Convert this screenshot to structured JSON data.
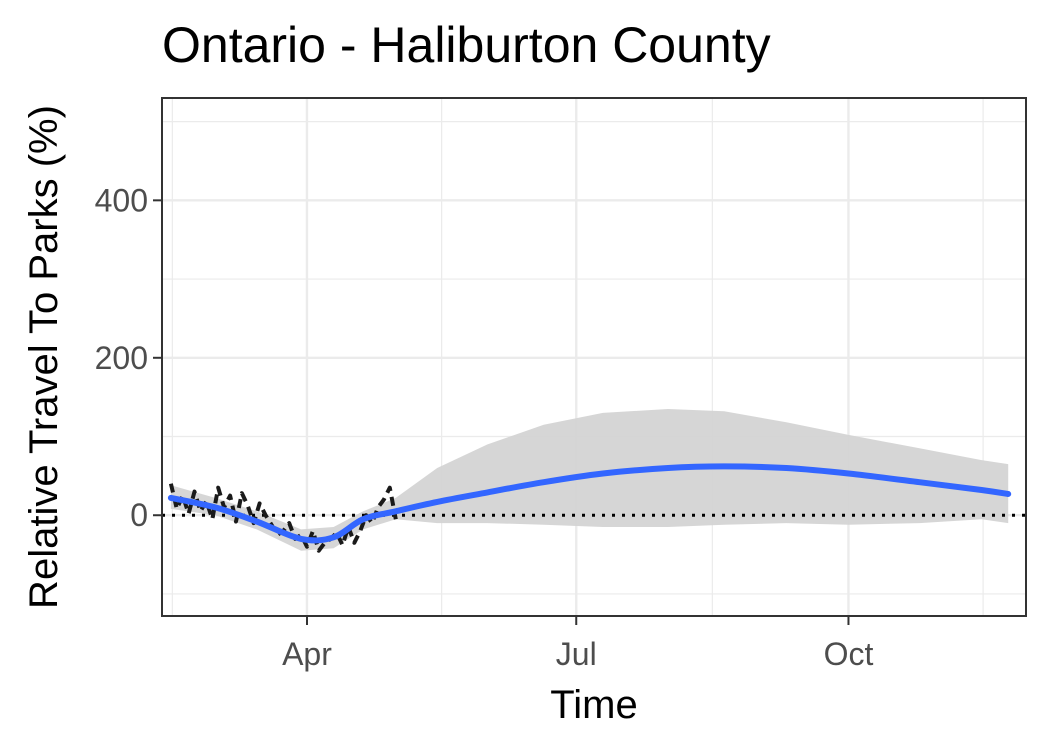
{
  "chart_data": {
    "type": "line",
    "title": "Ontario - Haliburton County",
    "xlabel": "Time",
    "ylabel": "Relative Travel To Parks (%)",
    "x_ticks": [
      "Apr",
      "Jul",
      "Oct"
    ],
    "x_tick_dates": [
      "2020-04-01",
      "2020-07-01",
      "2020-10-01"
    ],
    "y_ticks": [
      0,
      200,
      400
    ],
    "xlim": [
      "2020-02-12",
      "2020-11-30"
    ],
    "ylim": [
      -128,
      530
    ],
    "grid": true,
    "reference_line": {
      "y": 0,
      "style": "dotted"
    },
    "series": [
      {
        "kind": "observed",
        "x": [
          "2020-02-15",
          "2020-02-17",
          "2020-02-19",
          "2020-02-21",
          "2020-02-23",
          "2020-02-25",
          "2020-02-27",
          "2020-02-29",
          "2020-03-02",
          "2020-03-04",
          "2020-03-06",
          "2020-03-08",
          "2020-03-10",
          "2020-03-12",
          "2020-03-14",
          "2020-03-16",
          "2020-03-18",
          "2020-03-20",
          "2020-03-22",
          "2020-03-24",
          "2020-03-26",
          "2020-03-28",
          "2020-03-30",
          "2020-04-01",
          "2020-04-03",
          "2020-04-05",
          "2020-04-07",
          "2020-04-09",
          "2020-04-11",
          "2020-04-13",
          "2020-04-15",
          "2020-04-17",
          "2020-04-19",
          "2020-04-21",
          "2020-04-23",
          "2020-04-25",
          "2020-04-27",
          "2020-04-29",
          "2020-05-01"
        ],
        "values": [
          40,
          8,
          25,
          2,
          30,
          5,
          18,
          -5,
          35,
          10,
          25,
          -8,
          28,
          12,
          -10,
          15,
          0,
          -12,
          -25,
          -20,
          -10,
          -30,
          -25,
          -40,
          -20,
          -45,
          -35,
          -30,
          -22,
          -38,
          -15,
          -35,
          -20,
          0,
          -10,
          10,
          20,
          35,
          -5
        ]
      },
      {
        "kind": "smooth",
        "x": [
          "2020-02-15",
          "2020-03-01",
          "2020-03-15",
          "2020-03-30",
          "2020-04-10",
          "2020-04-20",
          "2020-05-01",
          "2020-05-15",
          "2020-06-01",
          "2020-06-20",
          "2020-07-10",
          "2020-08-01",
          "2020-08-20",
          "2020-09-10",
          "2020-10-01",
          "2020-10-25",
          "2020-11-15",
          "2020-11-24"
        ],
        "values": [
          22,
          10,
          -8,
          -30,
          -28,
          -5,
          5,
          17,
          29,
          42,
          53,
          60,
          62,
          60,
          53,
          42,
          32,
          27
        ]
      }
    ],
    "confidence_band": {
      "x": [
        "2020-02-15",
        "2020-03-01",
        "2020-03-15",
        "2020-03-30",
        "2020-04-10",
        "2020-04-20",
        "2020-05-01",
        "2020-05-15",
        "2020-06-01",
        "2020-06-20",
        "2020-07-10",
        "2020-08-01",
        "2020-08-20",
        "2020-09-10",
        "2020-10-01",
        "2020-10-25",
        "2020-11-15",
        "2020-11-24"
      ],
      "lower": [
        8,
        0,
        -18,
        -45,
        -42,
        -18,
        -5,
        -10,
        -10,
        -12,
        -15,
        -15,
        -12,
        -10,
        -12,
        -10,
        -5,
        -10
      ],
      "upper": [
        38,
        22,
        5,
        -18,
        -15,
        5,
        22,
        60,
        90,
        115,
        130,
        135,
        132,
        118,
        102,
        85,
        70,
        65
      ]
    },
    "colors": {
      "smooth": "#3366ff",
      "band": "#d4d4d4",
      "observed": "#1a1a1a",
      "grid": "#ebebeb",
      "panel_border": "#333333",
      "reference_line": "#000000"
    }
  }
}
